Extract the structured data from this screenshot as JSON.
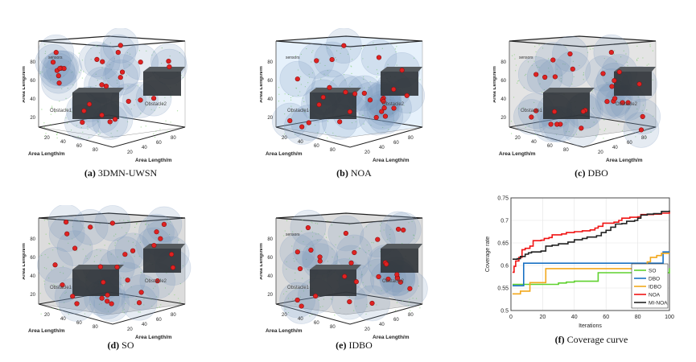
{
  "figure": {
    "panels3d": [
      {
        "id": "a",
        "caption_label": "(a)",
        "caption_title": "3DMN-UWSN",
        "bg": "#ffffff",
        "obstacle1": "Obstacle1",
        "obstacle2": "Obstacle2",
        "sensors_label": "sensors",
        "z_label": "Area Length/m",
        "x_label": "Area Length/m",
        "y_label": "Area Length/m",
        "z_ticks": [
          "20",
          "40",
          "60",
          "80"
        ],
        "x_ticks": [
          "20",
          "40",
          "60",
          "80"
        ],
        "y_ticks": [
          "20",
          "40",
          "60",
          "80"
        ]
      },
      {
        "id": "b",
        "caption_label": "(b)",
        "caption_title": "NOA",
        "bg": "#e6f1fb",
        "obstacle1": "Obstacle1",
        "obstacle2": "Obstacle2",
        "sensors_label": "sensors",
        "z_label": "Area Length/m",
        "x_label": "Area Length/m",
        "y_label": "Area Length/m",
        "z_ticks": [
          "20",
          "40",
          "60",
          "80"
        ],
        "x_ticks": [
          "20",
          "40",
          "60",
          "80"
        ],
        "y_ticks": [
          "20",
          "40",
          "60",
          "80"
        ]
      },
      {
        "id": "c",
        "caption_label": "(c)",
        "caption_title": "DBO",
        "bg": "#e4e4e4",
        "obstacle1": "Obstacle1",
        "obstacle2": "Obstacle2",
        "sensors_label": "sensors",
        "z_label": "Area Length/m",
        "x_label": "Area Length/m",
        "y_label": "Area Length/m",
        "z_ticks": [
          "20",
          "40",
          "60",
          "80"
        ],
        "x_ticks": [
          "20",
          "40",
          "60",
          "80"
        ],
        "y_ticks": [
          "20",
          "40",
          "60",
          "80"
        ]
      },
      {
        "id": "d",
        "caption_label": "(d)",
        "caption_title": "SO",
        "bg": "#dcdcdc",
        "obstacle1": "Obstacle1",
        "obstacle2": "Obstacle2",
        "sensors_label": "",
        "z_label": "Area Length/m",
        "x_label": "Area Length/m",
        "y_label": "Area Length/m",
        "z_ticks": [
          "20",
          "40",
          "60",
          "80"
        ],
        "x_ticks": [
          "20",
          "40",
          "60",
          "80"
        ],
        "y_ticks": [
          "20",
          "40",
          "60",
          "80"
        ]
      },
      {
        "id": "e",
        "caption_label": "(e)",
        "caption_title": "IDBO",
        "bg": "#dcdcdc",
        "obstacle1": "Obstacle1",
        "obstacle2": "Obstacle2",
        "sensors_label": "sensors",
        "z_label": "Area Length/m",
        "x_label": "Area Length/m",
        "y_label": "Area Length/m",
        "z_ticks": [
          "20",
          "40",
          "60",
          "80"
        ],
        "x_ticks": [
          "20",
          "40",
          "60",
          "80"
        ],
        "y_ticks": [
          "20",
          "40",
          "60",
          "80"
        ]
      }
    ],
    "curve_caption_label": "(f)",
    "curve_caption_title": "Coverage curve"
  },
  "chart_data": {
    "type": "line",
    "title": "",
    "xlabel": "Iterations",
    "ylabel": "Coverage rate",
    "xlim": [
      0,
      100
    ],
    "ylim": [
      0.5,
      0.75
    ],
    "x_ticks": [
      0,
      20,
      40,
      60,
      80,
      100
    ],
    "y_ticks": [
      0.5,
      0.55,
      0.6,
      0.65,
      0.7,
      0.75
    ],
    "y_tick_labels": [
      "0.5",
      "0.55",
      "0.6",
      "0.65",
      "0.7",
      "0.75"
    ],
    "grid": true,
    "legend_position": "bottom-right",
    "series": [
      {
        "name": "SO",
        "color": "#5fd12e",
        "step": true,
        "points": [
          [
            1,
            0.558
          ],
          [
            29,
            0.558
          ],
          [
            30,
            0.561
          ],
          [
            35,
            0.563
          ],
          [
            40,
            0.565
          ],
          [
            54,
            0.565
          ],
          [
            55,
            0.584
          ],
          [
            97,
            0.584
          ],
          [
            100,
            0.594
          ]
        ]
      },
      {
        "name": "DBO",
        "color": "#1a72c4",
        "step": true,
        "points": [
          [
            1,
            0.555
          ],
          [
            6,
            0.555
          ],
          [
            8,
            0.605
          ],
          [
            94,
            0.605
          ],
          [
            96,
            0.63
          ],
          [
            100,
            0.63
          ]
        ]
      },
      {
        "name": "IDBO",
        "color": "#f2a81d",
        "step": true,
        "points": [
          [
            1,
            0.537
          ],
          [
            5,
            0.537
          ],
          [
            6,
            0.543
          ],
          [
            10,
            0.543
          ],
          [
            12,
            0.562
          ],
          [
            21,
            0.562
          ],
          [
            22,
            0.593
          ],
          [
            84,
            0.593
          ],
          [
            86,
            0.608
          ],
          [
            88,
            0.618
          ],
          [
            92,
            0.622
          ],
          [
            95,
            0.627
          ],
          [
            100,
            0.627
          ]
        ]
      },
      {
        "name": "NOA",
        "color": "#f01414",
        "step": true,
        "points": [
          [
            1,
            0.585
          ],
          [
            2,
            0.598
          ],
          [
            3,
            0.61
          ],
          [
            5,
            0.618
          ],
          [
            7,
            0.635
          ],
          [
            9,
            0.638
          ],
          [
            12,
            0.643
          ],
          [
            14,
            0.655
          ],
          [
            19,
            0.656
          ],
          [
            21,
            0.66
          ],
          [
            24,
            0.662
          ],
          [
            26,
            0.668
          ],
          [
            32,
            0.67
          ],
          [
            35,
            0.673
          ],
          [
            40,
            0.675
          ],
          [
            45,
            0.677
          ],
          [
            50,
            0.679
          ],
          [
            53,
            0.683
          ],
          [
            55,
            0.687
          ],
          [
            58,
            0.694
          ],
          [
            65,
            0.696
          ],
          [
            68,
            0.7
          ],
          [
            70,
            0.705
          ],
          [
            75,
            0.707
          ],
          [
            80,
            0.708
          ],
          [
            82,
            0.713
          ],
          [
            90,
            0.714
          ],
          [
            95,
            0.716
          ],
          [
            100,
            0.719
          ]
        ]
      },
      {
        "name": "MI-NOA",
        "color": "#222222",
        "step": true,
        "points": [
          [
            1,
            0.614
          ],
          [
            4,
            0.615
          ],
          [
            6,
            0.62
          ],
          [
            9,
            0.625
          ],
          [
            11,
            0.628
          ],
          [
            13,
            0.63
          ],
          [
            19,
            0.632
          ],
          [
            22,
            0.643
          ],
          [
            26,
            0.645
          ],
          [
            30,
            0.648
          ],
          [
            36,
            0.652
          ],
          [
            40,
            0.657
          ],
          [
            45,
            0.66
          ],
          [
            48,
            0.663
          ],
          [
            54,
            0.666
          ],
          [
            57,
            0.673
          ],
          [
            60,
            0.678
          ],
          [
            63,
            0.685
          ],
          [
            66,
            0.692
          ],
          [
            70,
            0.693
          ],
          [
            73,
            0.698
          ],
          [
            78,
            0.7
          ],
          [
            80,
            0.705
          ],
          [
            82,
            0.712
          ],
          [
            86,
            0.714
          ],
          [
            90,
            0.715
          ],
          [
            95,
            0.72
          ],
          [
            100,
            0.722
          ]
        ]
      }
    ]
  }
}
